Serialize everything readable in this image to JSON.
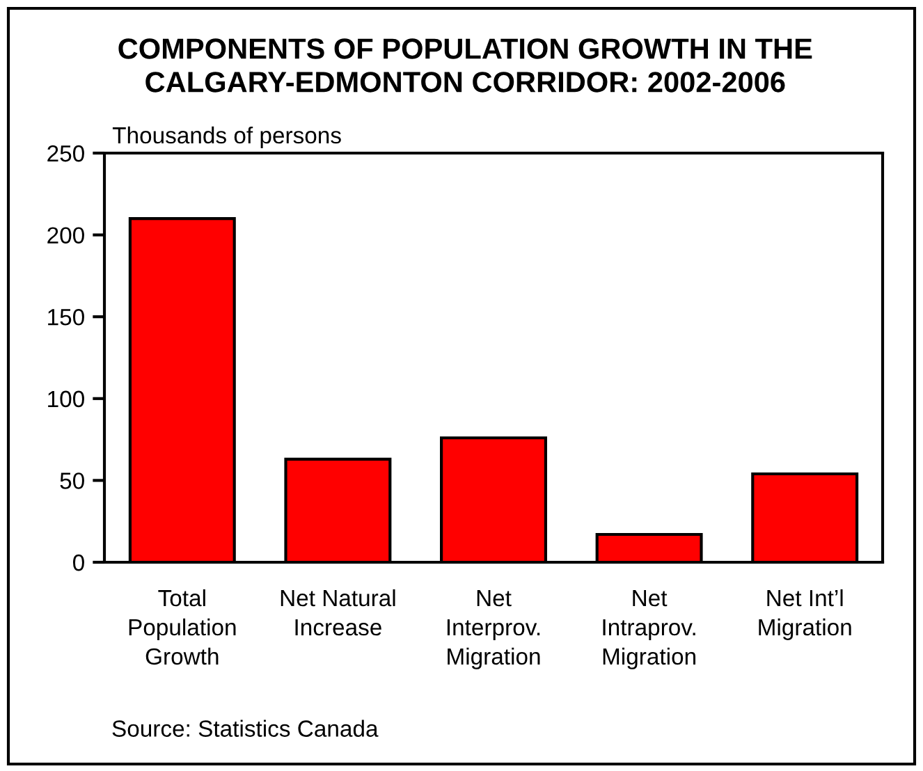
{
  "chart_data": {
    "type": "bar",
    "title": "COMPONENTS OF POPULATION GROWTH IN THE\nCALGARY-EDMONTON CORRIDOR: 2002-2006",
    "ylabel": "Thousands of persons",
    "categories": [
      "Total\nPopulation\nGrowth",
      "Net Natural\nIncrease",
      "Net\nInterprov.\nMigration",
      "Net\nIntraprov.\nMigration",
      "Net Int’l\nMigration"
    ],
    "values": [
      210,
      63,
      76,
      17,
      54
    ],
    "color": "#ff0000",
    "ylim": [
      0,
      250
    ],
    "yticks": [
      0,
      50,
      100,
      150,
      200,
      250
    ],
    "annotations": [
      "Source: Statistics Canada"
    ]
  }
}
